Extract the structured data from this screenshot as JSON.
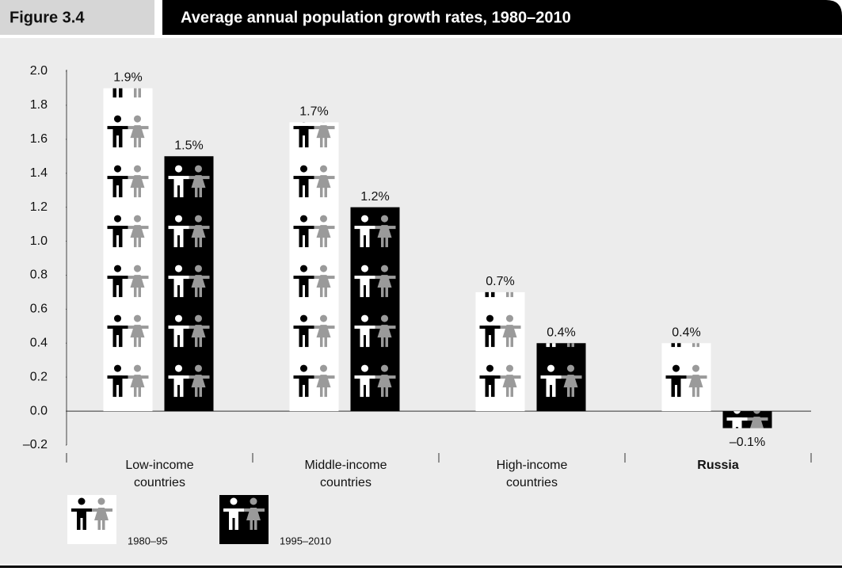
{
  "chart_data": {
    "type": "bar",
    "figure_label": "Figure 3.4",
    "title": "Average annual population growth rates, 1980–2010",
    "categories": [
      "Low-income countries",
      "Middle-income countries",
      "High-income countries",
      "Russia"
    ],
    "bold_category_index": 3,
    "series": [
      {
        "name": "1980–95",
        "color": "#ffffff",
        "values": [
          1.9,
          1.7,
          0.7,
          0.4
        ],
        "value_labels": [
          "1.9%",
          "1.7%",
          "0.7%",
          "0.4%"
        ]
      },
      {
        "name": "1995–2010",
        "color": "#000000",
        "values": [
          1.5,
          1.2,
          0.4,
          -0.1
        ],
        "value_labels": [
          "1.5%",
          "1.2%",
          "0.4%",
          "–0.1%"
        ]
      }
    ],
    "ylim": [
      -0.2,
      2.0
    ],
    "yticks": [
      {
        "value": -0.2,
        "label": "–0.2"
      },
      {
        "value": 0.0,
        "label": "0.0"
      },
      0.2,
      0.4,
      0.6,
      0.8,
      {
        "value": 1.0,
        "label": "1.0"
      },
      1.2,
      1.4,
      1.6,
      1.8,
      {
        "value": 2.0,
        "label": "2.0"
      }
    ],
    "grid": false
  }
}
